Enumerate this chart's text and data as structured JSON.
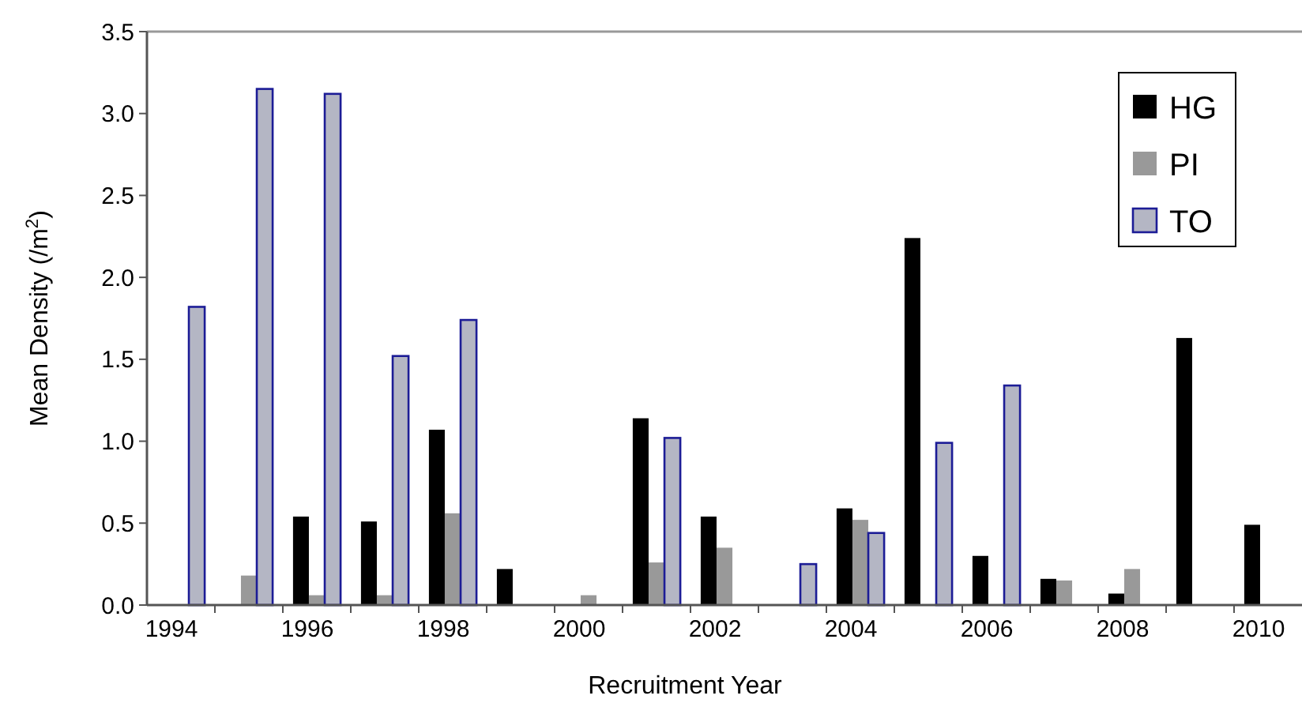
{
  "chart_data": {
    "type": "bar",
    "xlabel": "Recruitment Year",
    "ylabel": "Mean Density (/m$^{2}$)",
    "categories": [
      "1994",
      null,
      "1996",
      null,
      "1998",
      null,
      "2000",
      null,
      "2002",
      null,
      "2004",
      null,
      "2006",
      null,
      "2008",
      null,
      "2010"
    ],
    "series": [
      {
        "name": "HG",
        "color": "#000000",
        "values": [
          null,
          null,
          0.54,
          0.51,
          1.07,
          0.22,
          null,
          1.14,
          0.54,
          null,
          0.59,
          2.24,
          0.3,
          0.16,
          0.07,
          1.63,
          0.49
        ]
      },
      {
        "name": "PI",
        "color": "#999999",
        "values": [
          null,
          0.18,
          0.06,
          0.06,
          0.56,
          null,
          0.06,
          0.26,
          0.35,
          null,
          0.52,
          null,
          null,
          0.15,
          0.22,
          null,
          null
        ]
      },
      {
        "name": "TO",
        "color": "#b4b6c4",
        "values": [
          1.82,
          3.15,
          3.12,
          1.52,
          1.74,
          null,
          null,
          1.02,
          null,
          0.25,
          0.44,
          0.99,
          1.34,
          null,
          null,
          null,
          null
        ]
      }
    ],
    "ylim": [
      0,
      3.5
    ],
    "yticks": [
      {
        "value": 0,
        "label": "0.0"
      },
      {
        "value": 0.5,
        "label": "0.5"
      },
      {
        "value": 1,
        "label": "1.0"
      },
      {
        "value": 1.5,
        "label": "1.5"
      },
      {
        "value": 2,
        "label": "2.0"
      },
      {
        "value": 2.5,
        "label": "2.5"
      },
      {
        "value": 3,
        "label": "3.0"
      },
      {
        "value": 3.5,
        "label": "3.5"
      }
    ],
    "grid": false,
    "legend": "top right"
  }
}
